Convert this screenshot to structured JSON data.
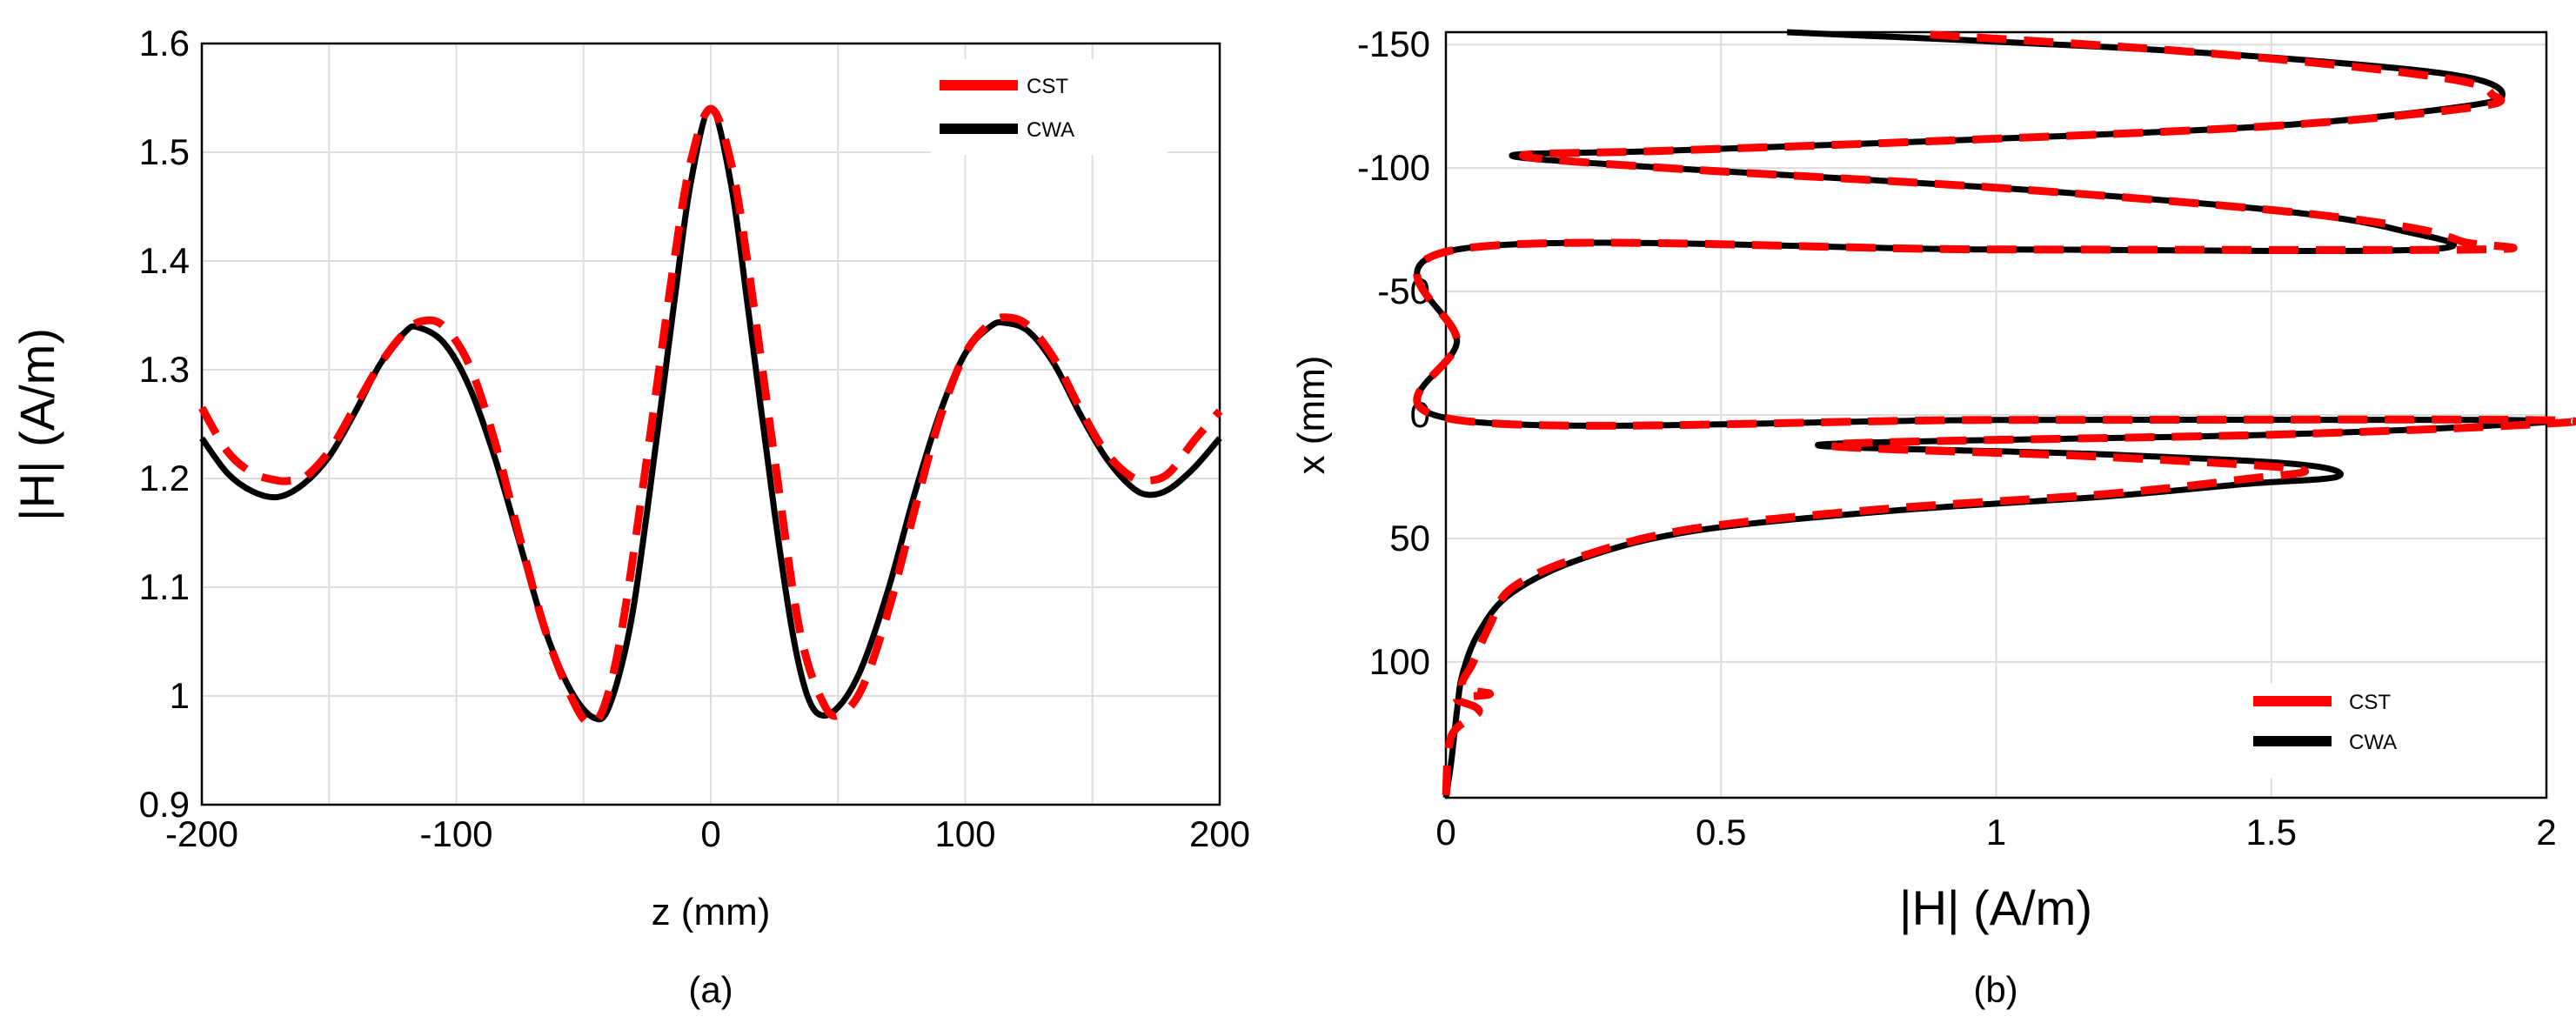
{
  "chart_data": [
    {
      "type": "line",
      "caption": "(a)",
      "xlabel": "z (mm)",
      "ylabel": "|H| (A/m)",
      "xlim": [
        -200,
        200
      ],
      "ylim": [
        0.9,
        1.6
      ],
      "xticks": [
        -200,
        -100,
        0,
        100,
        200
      ],
      "xtick_labels": [
        "-200",
        "-100",
        "0",
        "100",
        "200"
      ],
      "yticks": [
        0.9,
        1.0,
        1.1,
        1.2,
        1.3,
        1.4,
        1.5,
        1.6
      ],
      "ytick_labels": [
        "0.9",
        "1",
        "1.1",
        "1.2",
        "1.3",
        "1.4",
        "1.5",
        "1.6"
      ],
      "grid": true,
      "legend": {
        "position": "top-right",
        "entries": [
          "CST",
          "CWA"
        ]
      },
      "series": [
        {
          "name": "CST",
          "color": "#ff0000",
          "x": [
            -200,
            -190,
            -180,
            -170,
            -165,
            -160,
            -150,
            -140,
            -130,
            -120,
            -113,
            -105,
            -95,
            -85,
            -75,
            -65,
            -55,
            -48,
            -42,
            -35,
            -25,
            -15,
            -8,
            0,
            8,
            15,
            25,
            35,
            45,
            52,
            60,
            70,
            80,
            90,
            100,
            110,
            117,
            125,
            135,
            145,
            155,
            165,
            172,
            180,
            190,
            200
          ],
          "y": [
            1.265,
            1.225,
            1.205,
            1.198,
            1.198,
            1.2,
            1.225,
            1.265,
            1.305,
            1.335,
            1.345,
            1.34,
            1.305,
            1.235,
            1.145,
            1.06,
            1.0,
            0.975,
            0.99,
            1.06,
            1.22,
            1.39,
            1.49,
            1.54,
            1.49,
            1.39,
            1.22,
            1.06,
            0.99,
            0.985,
            1.01,
            1.08,
            1.17,
            1.255,
            1.315,
            1.343,
            1.348,
            1.34,
            1.31,
            1.265,
            1.225,
            1.202,
            1.198,
            1.205,
            1.235,
            1.262
          ]
        },
        {
          "name": "CWA",
          "color": "#000000",
          "x": [
            -200,
            -190,
            -180,
            -170,
            -160,
            -150,
            -140,
            -130,
            -120,
            -115,
            -105,
            -95,
            -85,
            -75,
            -65,
            -55,
            -46,
            -40,
            -32,
            -25,
            -15,
            -8,
            0,
            8,
            15,
            25,
            32,
            38,
            44,
            52,
            60,
            70,
            80,
            90,
            100,
            110,
            116,
            125,
            135,
            145,
            155,
            165,
            172,
            180,
            190,
            200
          ],
          "y": [
            1.237,
            1.205,
            1.188,
            1.183,
            1.195,
            1.22,
            1.26,
            1.305,
            1.335,
            1.339,
            1.325,
            1.285,
            1.22,
            1.14,
            1.06,
            1.005,
            0.98,
            0.99,
            1.06,
            1.17,
            1.35,
            1.47,
            1.54,
            1.47,
            1.35,
            1.17,
            1.06,
            1.0,
            0.982,
            0.995,
            1.03,
            1.1,
            1.185,
            1.26,
            1.315,
            1.34,
            1.343,
            1.335,
            1.305,
            1.26,
            1.22,
            1.193,
            1.185,
            1.19,
            1.21,
            1.237
          ]
        }
      ]
    },
    {
      "type": "line",
      "caption": "(b)",
      "xlabel": "|H| (A/m)",
      "ylabel": "x (mm)",
      "xlim": [
        0,
        2
      ],
      "ylim": [
        -155,
        155
      ],
      "y_reversed": true,
      "xticks": [
        0,
        0.5,
        1,
        1.5,
        2
      ],
      "xtick_labels": [
        "0",
        "0.5",
        "1",
        "1.5",
        "2"
      ],
      "yticks": [
        -150,
        -100,
        -50,
        0,
        50,
        100
      ],
      "ytick_labels": [
        "-150",
        "-100",
        "-50",
        "0",
        "50",
        "100"
      ],
      "grid": true,
      "legend": {
        "position": "bottom-right",
        "entries": [
          "CST",
          "CWA"
        ]
      },
      "series": [
        {
          "name": "CST",
          "color": "#ff0000",
          "h": [
            0.88,
            1.3,
            1.65,
            1.85,
            1.9,
            1.88,
            1.5,
            0.9,
            0.4,
            0.14,
            0.4,
            1.0,
            1.5,
            1.75,
            1.85,
            1.88,
            1.0,
            0.02,
            0.02,
            0.02,
            1.0,
            1.96,
            1.96,
            1.5,
            0.7,
            1.2,
            1.55,
            1.45,
            1.2,
            0.8,
            0.45,
            0.25,
            0.12,
            0.08,
            0.05,
            0.03,
            0.08,
            0.02,
            0.06,
            0.01,
            0.0
          ],
          "x": [
            -154,
            -148,
            -141,
            -135,
            -130,
            -125,
            -117,
            -111,
            -107,
            -105,
            -100,
            -92,
            -83,
            -76,
            -70,
            -67,
            -67,
            -67,
            -30,
            2,
            2,
            2,
            4,
            8,
            12,
            17,
            22,
            26,
            32,
            38,
            46,
            57,
            70,
            85,
            100,
            110,
            113,
            115,
            120,
            130,
            155
          ]
        },
        {
          "name": "CWA",
          "color": "#000000",
          "h": [
            0.62,
            1.2,
            1.6,
            1.85,
            1.92,
            1.85,
            1.5,
            0.9,
            0.4,
            0.12,
            0.4,
            1.0,
            1.5,
            1.73,
            1.78,
            1.0,
            0.02,
            0.02,
            0.02,
            1.0,
            1.92,
            1.92,
            1.5,
            0.68,
            1.2,
            1.55,
            1.62,
            1.45,
            1.2,
            0.8,
            0.45,
            0.25,
            0.12,
            0.06,
            0.03,
            0.02,
            0.01,
            0.0
          ],
          "x": [
            -155,
            -149,
            -143,
            -137,
            -130,
            -125,
            -117,
            -111,
            -107,
            -105,
            -100,
            -92,
            -83,
            -75,
            -67,
            -67,
            -67,
            -30,
            2,
            2,
            2,
            4,
            8,
            12,
            16,
            20,
            25,
            28,
            33,
            39,
            47,
            58,
            72,
            88,
            105,
            120,
            140,
            155
          ]
        }
      ]
    }
  ]
}
